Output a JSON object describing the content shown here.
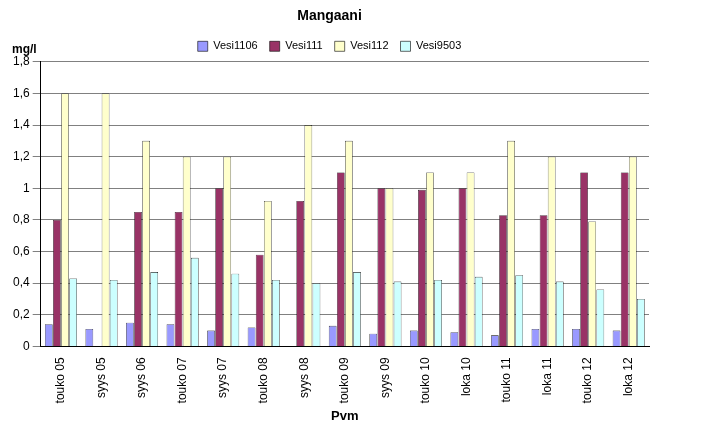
{
  "chart_data": {
    "type": "bar",
    "title": "Mangaani",
    "y_label": "mg/l",
    "x_label": "Pvm",
    "categories": [
      "touko 05",
      "syys 05",
      "syys 06",
      "touko 07",
      "syys 07",
      "touko 08",
      "syys 08",
      "touko 09",
      "syys 09",
      "touko 10",
      "loka 10",
      "touko 11",
      "loka 11",
      "touko 12",
      "loka 12"
    ],
    "series": [
      {
        "name": "Vesi1106",
        "color": "#9999ff",
        "values": [
          0.14,
          0.11,
          0.15,
          0.14,
          0.1,
          0.12,
          null,
          0.13,
          0.08,
          0.1,
          0.09,
          0.07,
          0.11,
          0.11,
          0.1
        ]
      },
      {
        "name": "Vesi111",
        "color": "#993366",
        "values": [
          0.8,
          null,
          0.85,
          0.85,
          1.0,
          0.58,
          0.92,
          1.1,
          1.0,
          0.99,
          1.0,
          0.83,
          0.83,
          1.1,
          1.1
        ]
      },
      {
        "name": "Vesi112",
        "color": "#ffffcc",
        "values": [
          1.6,
          1.6,
          1.3,
          1.2,
          1.2,
          0.92,
          1.4,
          1.3,
          1.0,
          1.1,
          1.1,
          1.3,
          1.2,
          0.79,
          1.2
        ]
      },
      {
        "name": "Vesi9503",
        "color": "#ccffff",
        "values": [
          0.43,
          0.42,
          0.47,
          0.56,
          0.46,
          0.42,
          0.4,
          0.47,
          0.41,
          0.42,
          0.44,
          0.45,
          0.41,
          0.36,
          0.3
        ]
      }
    ],
    "ylim": [
      0,
      1.8
    ],
    "yticks": [
      0,
      {
        "value": 0.2,
        "label": "0,2"
      },
      {
        "value": 0.4,
        "label": "0,4"
      },
      {
        "value": 0.6,
        "label": "0,6"
      },
      {
        "value": 0.8,
        "label": "0,8"
      },
      1,
      {
        "value": 1.2,
        "label": "1,2"
      },
      {
        "value": 1.4,
        "label": "1,4"
      },
      {
        "value": 1.6,
        "label": "1,6"
      },
      {
        "value": 1.8,
        "label": "1,8"
      }
    ],
    "grid": true,
    "legend": "top"
  }
}
